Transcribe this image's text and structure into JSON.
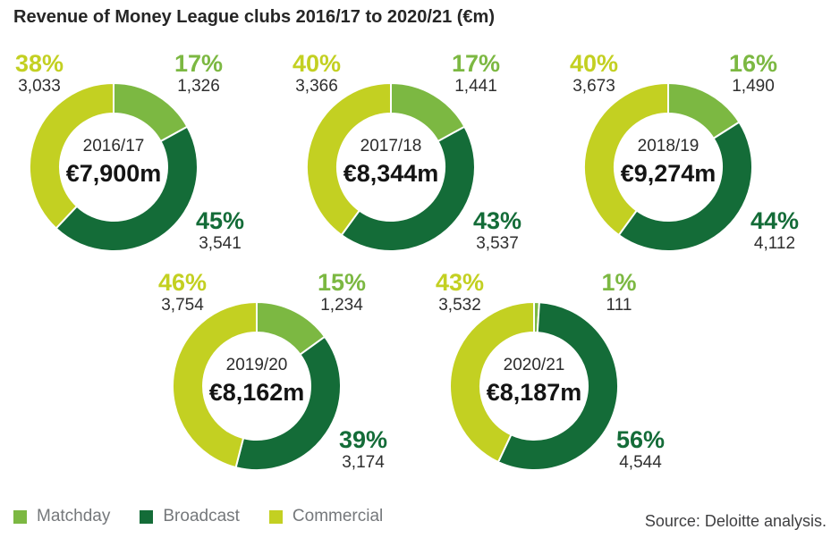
{
  "title": "Revenue of Money League clubs 2016/17 to 2020/21 (€m)",
  "source_note": "Source: Deloitte analysis.",
  "colors": {
    "matchday": "#7cb842",
    "broadcast": "#146c38",
    "commercial": "#c3d022",
    "value_text": "#2f2f2f",
    "legend_text": "#75787b"
  },
  "legend": {
    "matchday_label": "Matchday",
    "broadcast_label": "Broadcast",
    "commercial_label": "Commercial"
  },
  "chart_data": {
    "type": "pie",
    "subtype": "donut",
    "unit": "€m",
    "title": "Revenue of Money League clubs 2016/17 to 2020/21 (€m)",
    "categories": [
      "Matchday",
      "Broadcast",
      "Commercial"
    ],
    "order": [
      "matchday",
      "broadcast",
      "commercial"
    ],
    "segment_colors": [
      "#7cb842",
      "#146c38",
      "#c3d022"
    ],
    "legend_position": "bottom-left",
    "charts": [
      {
        "season": "2016/17",
        "total": "€7,900m",
        "total_value": 7900,
        "percents": {
          "matchday": 17,
          "broadcast": 45,
          "commercial": 38
        },
        "values": {
          "matchday": 1326,
          "broadcast": 3541,
          "commercial": 3033
        },
        "matchday": {
          "pct": "17%",
          "value": "1,326"
        },
        "broadcast": {
          "pct": "45%",
          "value": "3,541"
        },
        "commercial": {
          "pct": "38%",
          "value": "3,033"
        }
      },
      {
        "season": "2017/18",
        "total": "€8,344m",
        "total_value": 8344,
        "percents": {
          "matchday": 17,
          "broadcast": 43,
          "commercial": 40
        },
        "values": {
          "matchday": 1441,
          "broadcast": 3537,
          "commercial": 3366
        },
        "matchday": {
          "pct": "17%",
          "value": "1,441"
        },
        "broadcast": {
          "pct": "43%",
          "value": "3,537"
        },
        "commercial": {
          "pct": "40%",
          "value": "3,366"
        }
      },
      {
        "season": "2018/19",
        "total": "€9,274m",
        "total_value": 9274,
        "percents": {
          "matchday": 16,
          "broadcast": 44,
          "commercial": 40
        },
        "values": {
          "matchday": 1490,
          "broadcast": 4112,
          "commercial": 3673
        },
        "matchday": {
          "pct": "16%",
          "value": "1,490"
        },
        "broadcast": {
          "pct": "44%",
          "value": "4,112"
        },
        "commercial": {
          "pct": "40%",
          "value": "3,673"
        }
      },
      {
        "season": "2019/20",
        "total": "€8,162m",
        "total_value": 8162,
        "percents": {
          "matchday": 15,
          "broadcast": 39,
          "commercial": 46
        },
        "values": {
          "matchday": 1234,
          "broadcast": 3174,
          "commercial": 3754
        },
        "matchday": {
          "pct": "15%",
          "value": "1,234"
        },
        "broadcast": {
          "pct": "39%",
          "value": "3,174"
        },
        "commercial": {
          "pct": "46%",
          "value": "3,754"
        }
      },
      {
        "season": "2020/21",
        "total": "€8,187m",
        "total_value": 8187,
        "percents": {
          "matchday": 1,
          "broadcast": 56,
          "commercial": 43
        },
        "values": {
          "matchday": 111,
          "broadcast": 4544,
          "commercial": 3532
        },
        "matchday": {
          "pct": "1%",
          "value": "111"
        },
        "broadcast": {
          "pct": "56%",
          "value": "4,544"
        },
        "commercial": {
          "pct": "43%",
          "value": "3,532"
        }
      }
    ]
  }
}
